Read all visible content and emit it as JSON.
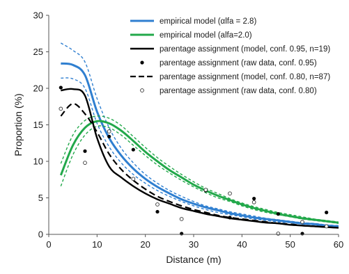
{
  "chart_data": {
    "type": "line",
    "xlabel": "Distance (m)",
    "ylabel": "Proportion (%)",
    "xlim": [
      0,
      60
    ],
    "ylim": [
      0,
      30
    ],
    "xticks": [
      0,
      10,
      20,
      30,
      40,
      50,
      60
    ],
    "yticks": [
      0,
      5,
      10,
      15,
      20,
      25,
      30
    ],
    "grid": false,
    "legend_position": "top-right",
    "series": [
      {
        "name": "empirical model (αlfa = 2.8)",
        "color": "#2f7fd0",
        "style": "solid",
        "x": [
          2.5,
          5,
          7.5,
          10,
          12.5,
          15,
          17.5,
          20,
          22.5,
          25,
          27.5,
          30,
          32.5,
          35,
          37.5,
          40,
          42.5,
          45,
          47.5,
          50,
          52.5,
          55,
          57.5,
          60
        ],
        "y": [
          23.4,
          23.2,
          21.8,
          16.8,
          13.2,
          10.8,
          9.0,
          7.6,
          6.5,
          5.6,
          4.8,
          4.2,
          3.7,
          3.3,
          2.9,
          2.6,
          2.3,
          2.1,
          1.9,
          1.7,
          1.5,
          1.4,
          1.2,
          1.1
        ],
        "ci_upper": [
          26.2,
          25.2,
          23.6,
          18.6,
          14.6,
          11.8,
          9.8,
          8.2,
          7.0,
          6.0,
          5.2,
          4.5,
          3.9,
          3.5,
          3.1,
          2.8,
          2.5,
          2.2,
          2.0,
          1.8,
          1.6,
          1.5,
          1.3,
          1.2
        ],
        "ci_lower": [
          21.4,
          21.3,
          20.0,
          15.2,
          12.0,
          9.8,
          8.2,
          7.0,
          6.0,
          5.2,
          4.5,
          3.9,
          3.4,
          3.0,
          2.7,
          2.4,
          2.1,
          1.9,
          1.7,
          1.6,
          1.4,
          1.3,
          1.1,
          1.0
        ]
      },
      {
        "name": "empirical model (alfa=2.0)",
        "color": "#22a84a",
        "style": "solid",
        "x": [
          2.5,
          5,
          7.5,
          10,
          12.5,
          15,
          17.5,
          20,
          22.5,
          25,
          27.5,
          30,
          32.5,
          35,
          37.5,
          40,
          42.5,
          45,
          47.5,
          50,
          52.5,
          55,
          57.5,
          60
        ],
        "y": [
          8.1,
          12.2,
          14.6,
          15.5,
          15.2,
          14.2,
          12.8,
          11.3,
          10.0,
          8.8,
          7.8,
          6.8,
          6.0,
          5.3,
          4.7,
          4.1,
          3.6,
          3.2,
          2.8,
          2.5,
          2.2,
          2.0,
          1.8,
          1.6
        ],
        "ci_upper": [
          9.7,
          13.6,
          15.6,
          16.2,
          15.9,
          14.9,
          13.4,
          11.9,
          10.5,
          9.3,
          8.2,
          7.2,
          6.3,
          5.6,
          4.9,
          4.3,
          3.8,
          3.4,
          3.0,
          2.7,
          2.4,
          2.1,
          1.9,
          1.7
        ],
        "ci_lower": [
          6.6,
          10.9,
          13.6,
          14.8,
          14.6,
          13.6,
          12.2,
          10.8,
          9.5,
          8.4,
          7.4,
          6.5,
          5.7,
          5.0,
          4.5,
          3.9,
          3.4,
          3.0,
          2.7,
          2.4,
          2.1,
          1.9,
          1.7,
          1.5
        ]
      },
      {
        "name": "parentage assignment (model, conf. 0.95, n=19)",
        "color": "#000000",
        "style": "solid",
        "x": [
          2.5,
          5,
          7.5,
          10,
          12.5,
          15,
          17.5,
          20,
          22.5,
          25,
          27.5,
          30,
          32.5,
          35,
          37.5,
          40,
          42.5,
          45,
          47.5,
          50,
          52.5,
          55,
          57.5,
          60
        ],
        "y": [
          19.7,
          19.9,
          19.0,
          13.2,
          9.3,
          7.8,
          6.6,
          5.6,
          4.8,
          4.2,
          3.6,
          3.2,
          2.8,
          2.5,
          2.2,
          2.0,
          1.8,
          1.6,
          1.5,
          1.3,
          1.2,
          1.1,
          1.0,
          0.9
        ]
      },
      {
        "name": "parentage assignment (raw data, conf. 0.95)",
        "color": "#000000",
        "style": "filled-dots",
        "x": [
          2.5,
          7.5,
          12.5,
          17.5,
          22.5,
          27.5,
          32.5,
          37.5,
          42.5,
          47.5,
          52.5,
          57.5
        ],
        "y": [
          20.1,
          11.4,
          13.4,
          11.6,
          3.1,
          0.1,
          6.0,
          2.3,
          4.9,
          2.8,
          0.1,
          3.0
        ]
      },
      {
        "name": "parentage assignment (model, conf. 0.80, n=87)",
        "color": "#000000",
        "style": "dashed",
        "x": [
          2.5,
          5,
          7.5,
          10,
          12.5,
          15,
          17.5,
          20,
          22.5,
          25,
          27.5,
          30,
          32.5,
          35,
          37.5,
          40,
          42.5,
          45,
          47.5,
          50,
          52.5,
          55,
          57.5,
          60
        ],
        "y": [
          16.2,
          17.9,
          16.5,
          14.0,
          11.0,
          8.9,
          7.4,
          6.2,
          5.2,
          4.5,
          3.9,
          3.4,
          3.0,
          2.6,
          2.3,
          2.1,
          1.9,
          1.7,
          1.5,
          1.4,
          1.2,
          1.1,
          1.0,
          0.9
        ]
      },
      {
        "name": "parentage assignment (raw  data, conf. 0.80)",
        "color": "#000000",
        "style": "open-dots",
        "x": [
          2.5,
          7.5,
          12.5,
          17.5,
          22.5,
          27.5,
          32.5,
          37.5,
          42.5,
          47.5,
          52.5,
          57.5
        ],
        "y": [
          17.2,
          9.8,
          14.1,
          7.6,
          4.1,
          2.1,
          6.1,
          5.6,
          4.4,
          0.1,
          1.7,
          1.1
        ]
      }
    ]
  }
}
